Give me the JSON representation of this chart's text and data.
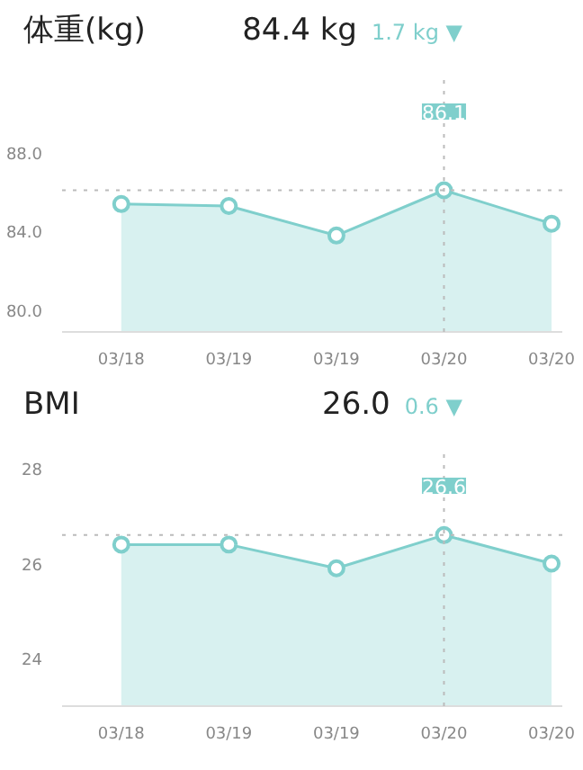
{
  "chart_data": [
    {
      "type": "area",
      "title": "体重(kg)",
      "subtitle": "84.4 kg",
      "annotations": [
        "1.7 kg ▼",
        "86.1"
      ],
      "categories": [
        "03/18",
        "03/19",
        "03/19",
        "03/20",
        "03/20"
      ],
      "series": [
        {
          "color": "#7fcfcc",
          "values": [
            85.4,
            85.3,
            83.8,
            86.1,
            84.4
          ]
        }
      ],
      "ylim": [
        78.9,
        91.7
      ],
      "yticks": [
        {
          "value": 80,
          "label": "80.0"
        },
        {
          "value": 84,
          "label": "84.0"
        },
        {
          "value": 88,
          "label": "88.0"
        }
      ],
      "marker": "circle",
      "ref_lines": [
        {
          "axis": "y",
          "value": 86.1,
          "line_style": "dotted"
        }
      ]
    },
    {
      "type": "area",
      "title": "BMI",
      "subtitle": "26.0",
      "annotations": [
        "0.6 ▼",
        "26.6"
      ],
      "categories": [
        "03/18",
        "03/19",
        "03/19",
        "03/20",
        "03/20"
      ],
      "series": [
        {
          "color": "#7fcfcc",
          "values": [
            26.4,
            26.4,
            25.9,
            26.6,
            26.0
          ]
        }
      ],
      "ylim": [
        23.0,
        28.3
      ],
      "yticks": [
        24,
        26,
        28
      ],
      "marker": "circle",
      "ref_lines": [
        {
          "axis": "y",
          "value": 26.6,
          "line_style": "dotted"
        }
      ]
    }
  ]
}
